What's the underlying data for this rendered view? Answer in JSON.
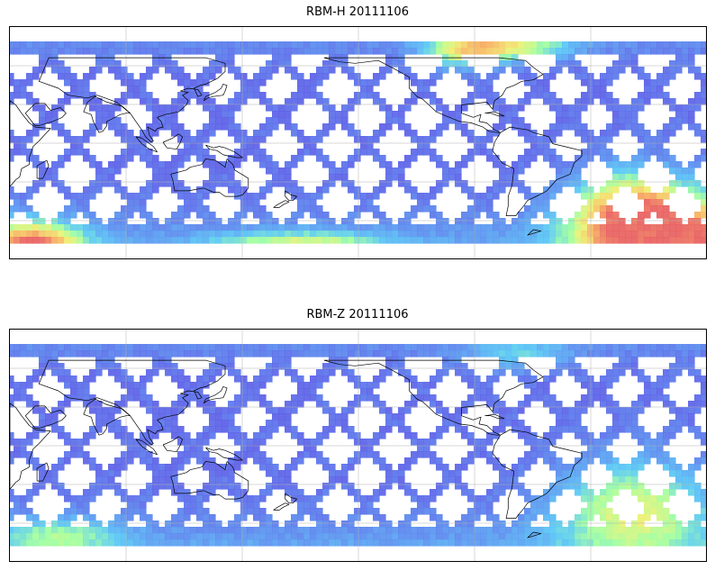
{
  "maps": [
    {
      "title": "RBM-H 20111106",
      "variable": "RBM-H",
      "date": "20111106",
      "colormap": [
        "#5b5be6",
        "#5a8ff0",
        "#57c8f5",
        "#9effa0",
        "#f0f070",
        "#f7b060",
        "#e86060"
      ],
      "high_regions": [
        "south-atlantic",
        "south-indian",
        "north-pacific"
      ]
    },
    {
      "title": "RBM-Z 20111106",
      "variable": "RBM-Z",
      "date": "20111106",
      "colormap": [
        "#5b5be6",
        "#5a8ff0",
        "#57c8f5",
        "#9effa0",
        "#f0f070",
        "#f7b060",
        "#e86060"
      ],
      "high_regions": [
        "south-atlantic",
        "south-indian"
      ]
    }
  ],
  "chart_data": [
    {
      "type": "heatmap",
      "title": "RBM-H 20111106",
      "projection": "equirectangular",
      "lon_center": 150,
      "grid": true,
      "colorbar": false
    },
    {
      "type": "heatmap",
      "title": "RBM-Z 20111106",
      "projection": "equirectangular",
      "lon_center": 150,
      "grid": true,
      "colorbar": false
    }
  ]
}
